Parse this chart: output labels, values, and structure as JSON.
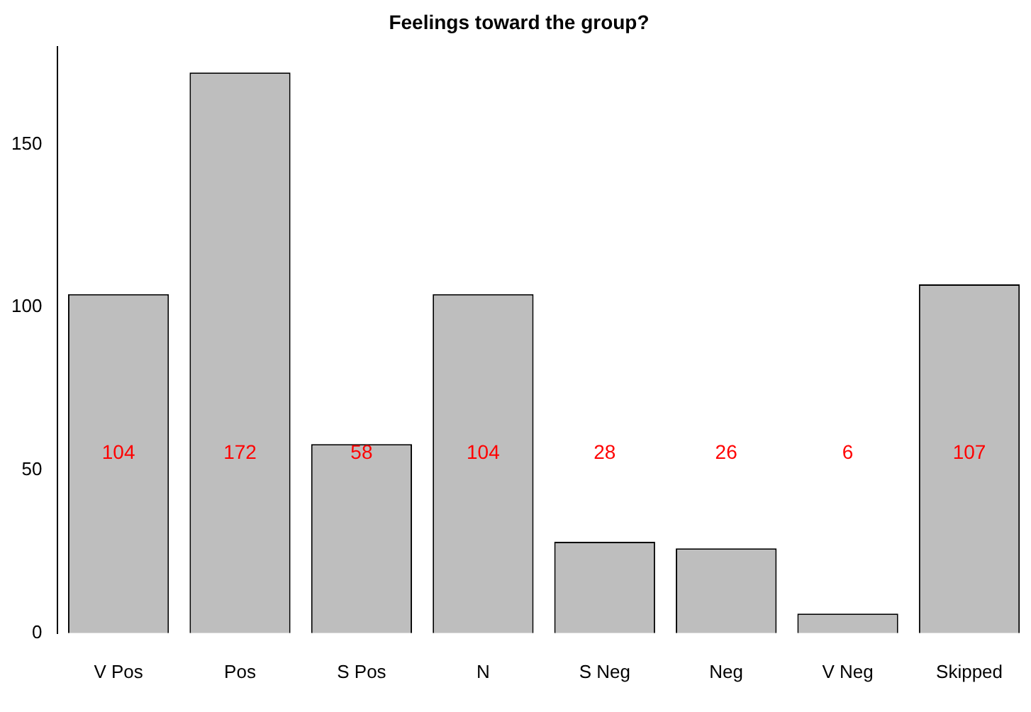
{
  "chart_data": {
    "type": "bar",
    "title": "Feelings toward the group?",
    "categories": [
      "V Pos",
      "Pos",
      "S Pos",
      "N",
      "S Neg",
      "Neg",
      "V Neg",
      "Skipped"
    ],
    "values": [
      104,
      172,
      58,
      104,
      28,
      26,
      6,
      107
    ],
    "color": "#bebebe",
    "ylim": [
      0,
      180
    ],
    "yticks": [
      0,
      50,
      100,
      150
    ],
    "grid": false,
    "legend": false,
    "annotations": [
      "104",
      "172",
      "58",
      "104",
      "28",
      "26",
      "6",
      "107"
    ]
  }
}
